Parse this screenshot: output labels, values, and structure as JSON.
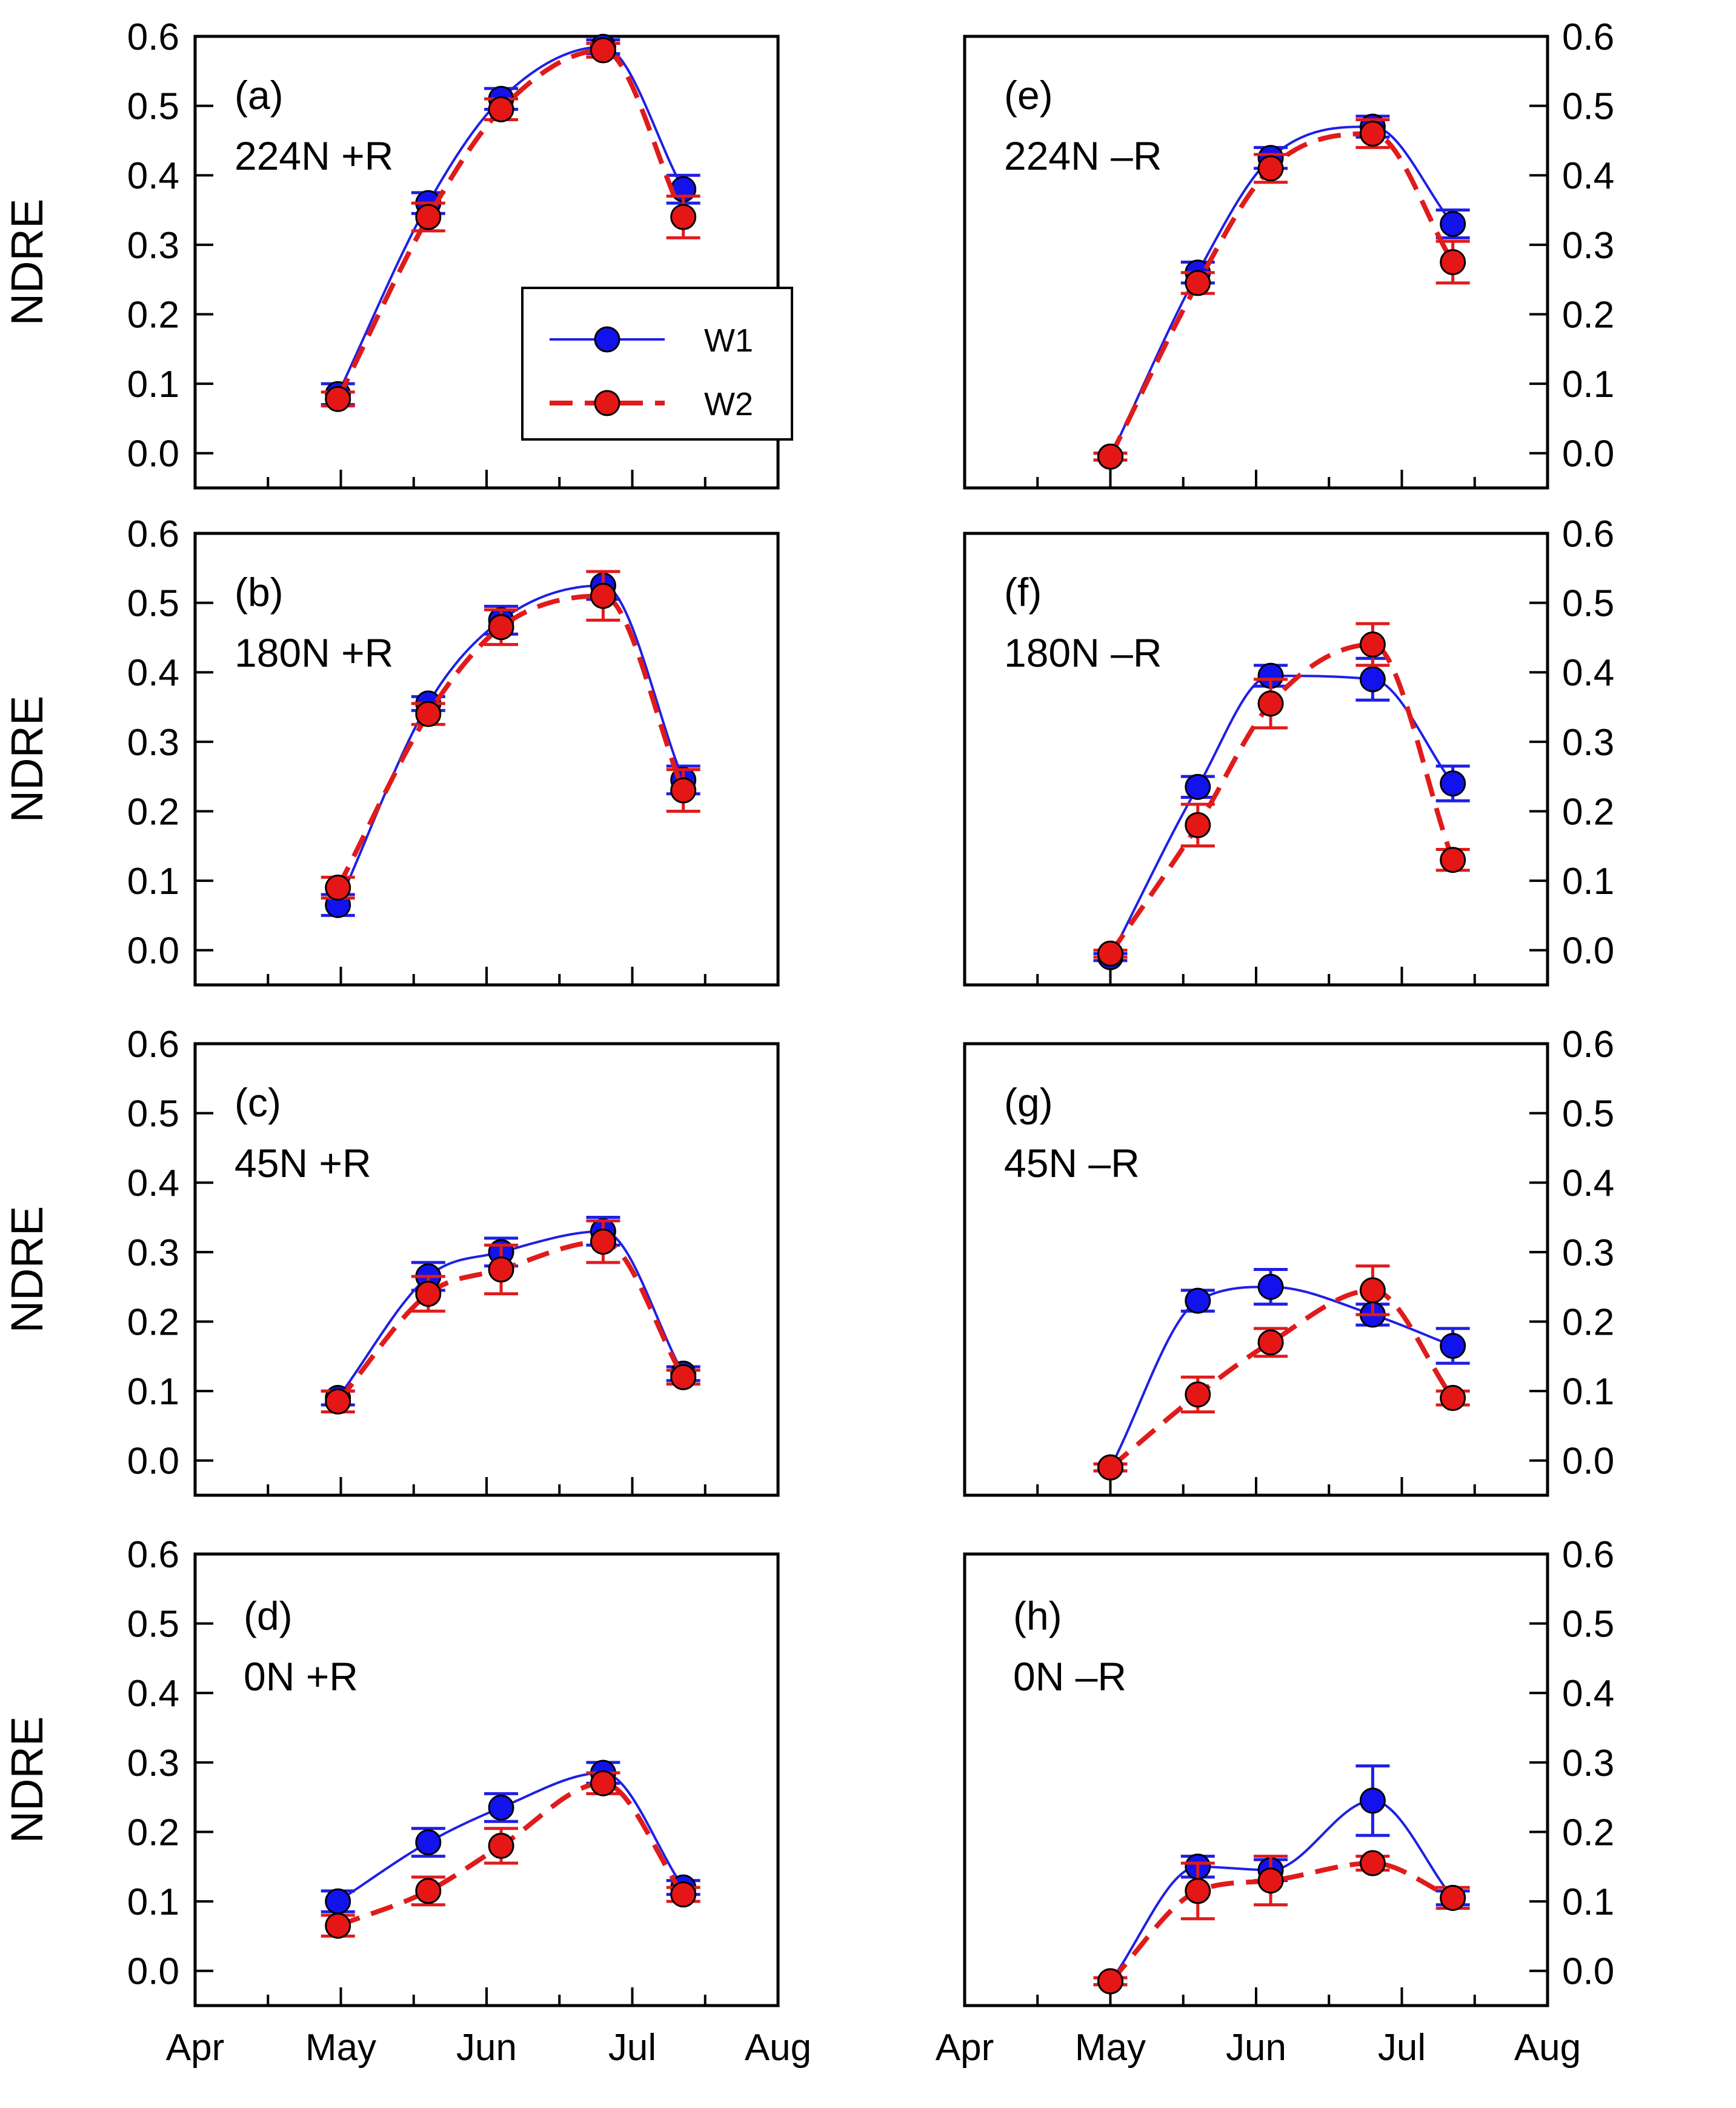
{
  "figure": {
    "y_axis_title": "NDRE",
    "series_names": [
      "W1",
      "W2"
    ],
    "series_colors": {
      "W1": "#1f1fe6",
      "W2": "#e01b1b"
    },
    "marker_fill": {
      "W1": "#1212ee",
      "W2": "#e51616"
    },
    "legend_location": "panel (a), lower-right",
    "x_tick_labels": [
      "Apr",
      "May",
      "Jun",
      "Jul",
      "Aug"
    ],
    "y_tick_labels": [
      "0.0",
      "0.1",
      "0.2",
      "0.3",
      "0.4",
      "0.5",
      "0.6"
    ]
  },
  "chart_data": [
    {
      "id": "a",
      "type": "line",
      "label": "(a)",
      "treatment": "224N +R",
      "xlabel": "",
      "ylabel": "NDRE",
      "xlim": [
        0,
        4
      ],
      "ylim": [
        -0.05,
        0.6
      ],
      "yaxis": "left",
      "x": [
        0.98,
        1.6,
        2.1,
        2.8,
        3.35
      ],
      "series": [
        {
          "name": "W1",
          "values": [
            0.085,
            0.36,
            0.51,
            0.585,
            0.38
          ],
          "err": [
            0.015,
            0.015,
            0.015,
            0.01,
            0.02
          ]
        },
        {
          "name": "W2",
          "values": [
            0.078,
            0.34,
            0.495,
            0.58,
            0.34
          ],
          "err": [
            0.01,
            0.02,
            0.015,
            0.01,
            0.03
          ]
        }
      ]
    },
    {
      "id": "b",
      "type": "line",
      "label": "(b)",
      "treatment": "180N +R",
      "xlabel": "",
      "ylabel": "NDRE",
      "xlim": [
        0,
        4
      ],
      "ylim": [
        -0.05,
        0.6
      ],
      "yaxis": "left",
      "x": [
        0.98,
        1.6,
        2.1,
        2.8,
        3.35
      ],
      "series": [
        {
          "name": "W1",
          "values": [
            0.065,
            0.355,
            0.475,
            0.525,
            0.245
          ],
          "err": [
            0.015,
            0.01,
            0.02,
            0.02,
            0.02
          ]
        },
        {
          "name": "W2",
          "values": [
            0.09,
            0.34,
            0.465,
            0.51,
            0.23
          ],
          "err": [
            0.015,
            0.015,
            0.025,
            0.035,
            0.03
          ]
        }
      ]
    },
    {
      "id": "c",
      "type": "line",
      "label": "(c)",
      "treatment": "45N +R",
      "xlabel": "",
      "ylabel": "NDRE",
      "xlim": [
        0,
        4
      ],
      "ylim": [
        -0.05,
        0.6
      ],
      "yaxis": "left",
      "x": [
        0.98,
        1.6,
        2.1,
        2.8,
        3.35
      ],
      "series": [
        {
          "name": "W1",
          "values": [
            0.09,
            0.265,
            0.3,
            0.33,
            0.125
          ],
          "err": [
            0.01,
            0.02,
            0.02,
            0.02,
            0.01
          ]
        },
        {
          "name": "W2",
          "values": [
            0.085,
            0.24,
            0.275,
            0.315,
            0.12
          ],
          "err": [
            0.015,
            0.025,
            0.035,
            0.03,
            0.01
          ]
        }
      ]
    },
    {
      "id": "d",
      "type": "line",
      "label": "(d)",
      "treatment": "0N +R",
      "xlabel": "",
      "ylabel": "NDRE",
      "xlim": [
        0,
        4
      ],
      "ylim": [
        -0.05,
        0.6
      ],
      "yaxis": "left",
      "x": [
        0.98,
        1.6,
        2.1,
        2.8,
        3.35
      ],
      "series": [
        {
          "name": "W1",
          "values": [
            0.1,
            0.185,
            0.235,
            0.285,
            0.12
          ],
          "err": [
            0.015,
            0.02,
            0.02,
            0.015,
            0.01
          ]
        },
        {
          "name": "W2",
          "values": [
            0.065,
            0.115,
            0.18,
            0.27,
            0.11
          ],
          "err": [
            0.015,
            0.02,
            0.025,
            0.015,
            0.01
          ]
        }
      ]
    },
    {
      "id": "e",
      "type": "line",
      "label": "(e)",
      "treatment": "224N –R",
      "xlabel": "",
      "ylabel": "",
      "xlim": [
        0,
        4
      ],
      "ylim": [
        -0.05,
        0.6
      ],
      "yaxis": "right",
      "x": [
        1.0,
        1.6,
        2.1,
        2.8,
        3.35
      ],
      "series": [
        {
          "name": "W1",
          "values": [
            -0.005,
            0.26,
            0.425,
            0.47,
            0.33
          ],
          "err": [
            0.005,
            0.015,
            0.015,
            0.015,
            0.02
          ]
        },
        {
          "name": "W2",
          "values": [
            -0.005,
            0.245,
            0.41,
            0.46,
            0.275
          ],
          "err": [
            0.005,
            0.015,
            0.02,
            0.02,
            0.03
          ]
        }
      ]
    },
    {
      "id": "f",
      "type": "line",
      "label": "(f)",
      "treatment": "180N –R",
      "xlabel": "",
      "ylabel": "",
      "xlim": [
        0,
        4
      ],
      "ylim": [
        -0.05,
        0.6
      ],
      "yaxis": "right",
      "x": [
        1.0,
        1.6,
        2.1,
        2.8,
        3.35
      ],
      "series": [
        {
          "name": "W1",
          "values": [
            -0.01,
            0.235,
            0.395,
            0.39,
            0.24
          ],
          "err": [
            0.005,
            0.015,
            0.015,
            0.03,
            0.025
          ]
        },
        {
          "name": "W2",
          "values": [
            -0.005,
            0.18,
            0.355,
            0.44,
            0.13
          ],
          "err": [
            0.005,
            0.03,
            0.035,
            0.03,
            0.015
          ]
        }
      ]
    },
    {
      "id": "g",
      "type": "line",
      "label": "(g)",
      "treatment": "45N –R",
      "xlabel": "",
      "ylabel": "",
      "xlim": [
        0,
        4
      ],
      "ylim": [
        -0.05,
        0.6
      ],
      "yaxis": "right",
      "x": [
        1.0,
        1.6,
        2.1,
        2.8,
        3.35
      ],
      "series": [
        {
          "name": "W1",
          "values": [
            -0.01,
            0.23,
            0.25,
            0.21,
            0.165
          ],
          "err": [
            0.005,
            0.015,
            0.025,
            0.015,
            0.025
          ]
        },
        {
          "name": "W2",
          "values": [
            -0.01,
            0.095,
            0.17,
            0.245,
            0.09
          ],
          "err": [
            0.005,
            0.025,
            0.02,
            0.035,
            0.01
          ]
        }
      ]
    },
    {
      "id": "h",
      "type": "line",
      "label": "(h)",
      "treatment": "0N –R",
      "xlabel": "",
      "ylabel": "",
      "xlim": [
        0,
        4
      ],
      "ylim": [
        -0.05,
        0.6
      ],
      "yaxis": "right",
      "x": [
        1.0,
        1.6,
        2.1,
        2.8,
        3.35
      ],
      "series": [
        {
          "name": "W1",
          "values": [
            -0.015,
            0.15,
            0.145,
            0.245,
            0.105
          ],
          "err": [
            0.005,
            0.015,
            0.015,
            0.05,
            0.01
          ]
        },
        {
          "name": "W2",
          "values": [
            -0.015,
            0.115,
            0.13,
            0.155,
            0.105
          ],
          "err": [
            0.005,
            0.04,
            0.035,
            0.01,
            0.015
          ]
        }
      ]
    }
  ]
}
